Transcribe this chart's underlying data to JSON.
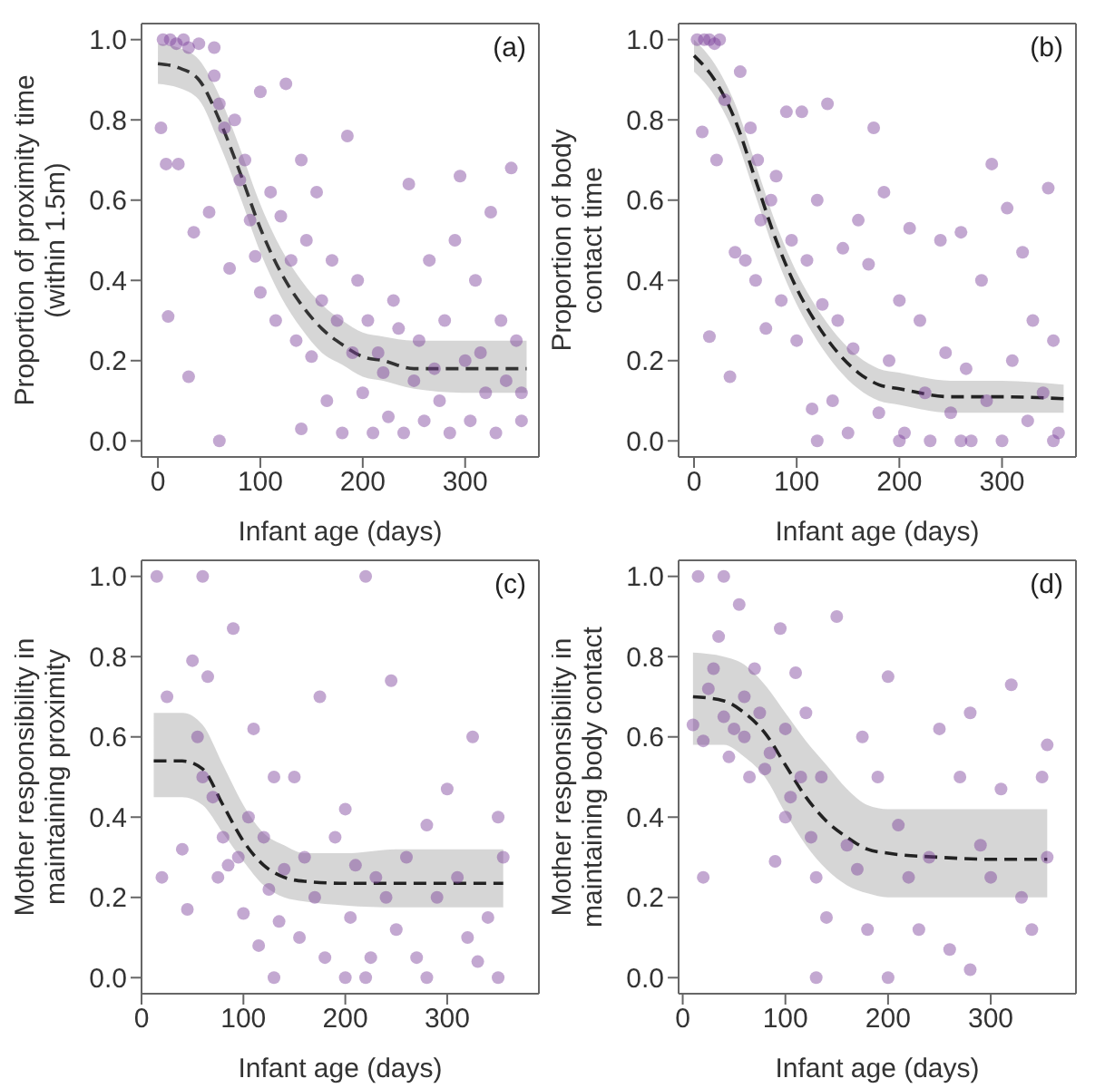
{
  "chart_data": [
    {
      "type": "scatter",
      "xlabel": "Infant age (days)",
      "ylabel": "Proportion of proximity time\n(within 1.5m)",
      "annotations": [
        "(a)"
      ],
      "xlim": [
        -16,
        372
      ],
      "ylim": [
        -0.04,
        1.04
      ],
      "xticks": [
        0,
        100,
        200,
        300
      ],
      "yticks": [
        {
          "value": 0,
          "label": "0.0"
        },
        {
          "value": 0.2,
          "label": "0.2"
        },
        {
          "value": 0.4,
          "label": "0.4"
        },
        {
          "value": 0.6,
          "label": "0.6"
        },
        {
          "value": 0.8,
          "label": "0.8"
        },
        {
          "value": 1,
          "label": "1.0"
        }
      ],
      "series": [
        {
          "marker": "circle",
          "color": "#7b3f98",
          "x": [
            5,
            12,
            18,
            25,
            30,
            40,
            55,
            3,
            8,
            10,
            20,
            35,
            50,
            55,
            60,
            65,
            70,
            75,
            80,
            85,
            90,
            95,
            100,
            100,
            110,
            115,
            120,
            125,
            130,
            135,
            140,
            145,
            150,
            155,
            160,
            165,
            170,
            175,
            180,
            185,
            190,
            195,
            200,
            205,
            210,
            215,
            220,
            225,
            230,
            235,
            240,
            245,
            250,
            255,
            260,
            265,
            270,
            275,
            280,
            285,
            290,
            295,
            300,
            305,
            310,
            315,
            320,
            325,
            330,
            335,
            340,
            345,
            350,
            355,
            355,
            140,
            60,
            30
          ],
          "values": [
            1.0,
            1.0,
            0.99,
            1.0,
            0.98,
            0.99,
            0.98,
            0.78,
            0.69,
            0.31,
            0.69,
            0.52,
            0.57,
            0.91,
            0.84,
            0.78,
            0.43,
            0.8,
            0.65,
            0.7,
            0.55,
            0.46,
            0.37,
            0.87,
            0.62,
            0.3,
            0.56,
            0.89,
            0.45,
            0.25,
            0.7,
            0.5,
            0.21,
            0.62,
            0.35,
            0.1,
            0.45,
            0.3,
            0.02,
            0.76,
            0.22,
            0.4,
            0.12,
            0.3,
            0.02,
            0.22,
            0.17,
            0.06,
            0.35,
            0.28,
            0.02,
            0.64,
            0.15,
            0.25,
            0.05,
            0.45,
            0.18,
            0.1,
            0.3,
            0.02,
            0.5,
            0.66,
            0.2,
            0.05,
            0.4,
            0.22,
            0.12,
            0.57,
            0.02,
            0.3,
            0.15,
            0.68,
            0.25,
            0.05,
            0.12,
            0.03,
            0.0,
            0.16
          ]
        },
        {
          "type": "line",
          "marker": "none",
          "line_style": "dashed",
          "color": "#333333",
          "x": [
            0,
            20,
            40,
            60,
            80,
            100,
            120,
            140,
            160,
            180,
            200,
            220,
            250,
            300,
            360
          ],
          "values": [
            0.94,
            0.93,
            0.9,
            0.8,
            0.67,
            0.53,
            0.42,
            0.34,
            0.28,
            0.24,
            0.21,
            0.2,
            0.18,
            0.18,
            0.18
          ],
          "lower": [
            0.89,
            0.88,
            0.85,
            0.74,
            0.61,
            0.47,
            0.36,
            0.28,
            0.22,
            0.19,
            0.16,
            0.15,
            0.13,
            0.12,
            0.12
          ],
          "upper": [
            0.99,
            0.98,
            0.95,
            0.86,
            0.73,
            0.59,
            0.48,
            0.4,
            0.34,
            0.3,
            0.27,
            0.26,
            0.25,
            0.25,
            0.25
          ]
        }
      ]
    },
    {
      "type": "scatter",
      "xlabel": "Infant age (days)",
      "ylabel": "Proportion of body\ncontact time",
      "annotations": [
        "(b)"
      ],
      "xlim": [
        -15,
        372
      ],
      "ylim": [
        -0.04,
        1.04
      ],
      "xticks": [
        0,
        100,
        200,
        300
      ],
      "yticks": [
        {
          "value": 0,
          "label": "0.0"
        },
        {
          "value": 0.2,
          "label": "0.2"
        },
        {
          "value": 0.4,
          "label": "0.4"
        },
        {
          "value": 0.6,
          "label": "0.6"
        },
        {
          "value": 0.8,
          "label": "0.8"
        },
        {
          "value": 1,
          "label": "1.0"
        }
      ],
      "series": [
        {
          "marker": "circle",
          "color": "#7b3f98",
          "x": [
            3,
            10,
            15,
            20,
            25,
            8,
            15,
            22,
            30,
            35,
            40,
            45,
            50,
            55,
            60,
            62,
            65,
            70,
            75,
            80,
            85,
            90,
            95,
            100,
            105,
            110,
            115,
            120,
            125,
            130,
            135,
            140,
            145,
            150,
            155,
            160,
            170,
            175,
            180,
            185,
            190,
            200,
            205,
            210,
            220,
            225,
            230,
            240,
            245,
            250,
            260,
            265,
            270,
            280,
            285,
            290,
            300,
            305,
            310,
            320,
            325,
            330,
            340,
            345,
            350,
            355,
            120,
            200,
            260,
            350
          ],
          "values": [
            1.0,
            1.0,
            1.0,
            0.99,
            1.0,
            0.77,
            0.26,
            0.7,
            0.85,
            0.16,
            0.47,
            0.92,
            0.45,
            0.78,
            0.4,
            0.7,
            0.55,
            0.28,
            0.6,
            0.66,
            0.35,
            0.82,
            0.5,
            0.25,
            0.82,
            0.45,
            0.08,
            0.6,
            0.34,
            0.84,
            0.1,
            0.3,
            0.48,
            0.02,
            0.23,
            0.55,
            0.44,
            0.78,
            0.07,
            0.62,
            0.2,
            0.35,
            0.02,
            0.53,
            0.3,
            0.12,
            0.0,
            0.5,
            0.22,
            0.07,
            0.52,
            0.18,
            0.0,
            0.4,
            0.1,
            0.69,
            0.0,
            0.58,
            0.2,
            0.47,
            0.05,
            0.3,
            0.12,
            0.63,
            0.25,
            0.02,
            0.0,
            0.0,
            0.0,
            0.0
          ]
        },
        {
          "type": "line",
          "marker": "none",
          "line_style": "dashed",
          "color": "#222222",
          "x": [
            0,
            20,
            40,
            60,
            80,
            100,
            120,
            140,
            160,
            180,
            200,
            250,
            300,
            360
          ],
          "values": [
            0.96,
            0.9,
            0.8,
            0.65,
            0.5,
            0.38,
            0.29,
            0.22,
            0.17,
            0.14,
            0.13,
            0.11,
            0.11,
            0.105
          ],
          "lower": [
            0.92,
            0.86,
            0.76,
            0.61,
            0.46,
            0.34,
            0.25,
            0.18,
            0.13,
            0.1,
            0.09,
            0.07,
            0.07,
            0.07
          ],
          "upper": [
            1.0,
            0.94,
            0.84,
            0.69,
            0.54,
            0.42,
            0.33,
            0.26,
            0.21,
            0.18,
            0.17,
            0.15,
            0.15,
            0.14
          ]
        }
      ]
    },
    {
      "type": "scatter",
      "xlabel": "Infant age (days)",
      "ylabel": "Mother responsibility in\nmaintaining proximity",
      "annotations": [
        "(c)"
      ],
      "xlim": [
        0,
        390
      ],
      "ylim": [
        -0.04,
        1.04
      ],
      "xticks": [
        0,
        100,
        200,
        300
      ],
      "yticks": [
        {
          "value": 0,
          "label": "0.0"
        },
        {
          "value": 0.2,
          "label": "0.2"
        },
        {
          "value": 0.4,
          "label": "0.4"
        },
        {
          "value": 0.6,
          "label": "0.6"
        },
        {
          "value": 0.8,
          "label": "0.8"
        },
        {
          "value": 1,
          "label": "1.0"
        }
      ],
      "series": [
        {
          "marker": "circle",
          "color": "#7b3f98",
          "x": [
            15,
            20,
            25,
            40,
            45,
            50,
            55,
            60,
            65,
            70,
            75,
            80,
            85,
            90,
            95,
            100,
            105,
            110,
            115,
            120,
            125,
            130,
            135,
            140,
            150,
            155,
            160,
            170,
            175,
            180,
            190,
            200,
            205,
            210,
            220,
            225,
            230,
            240,
            245,
            250,
            260,
            270,
            280,
            290,
            300,
            310,
            320,
            325,
            330,
            340,
            350,
            355,
            60,
            130,
            200,
            220,
            280,
            350
          ],
          "values": [
            1.0,
            0.25,
            0.7,
            0.32,
            0.17,
            0.79,
            0.6,
            0.5,
            0.75,
            0.45,
            0.25,
            0.35,
            0.28,
            0.87,
            0.3,
            0.16,
            0.4,
            0.62,
            0.08,
            0.35,
            0.22,
            0.5,
            0.14,
            0.27,
            0.5,
            0.1,
            0.3,
            0.2,
            0.7,
            0.05,
            0.35,
            0.0,
            0.15,
            0.28,
            1.0,
            0.05,
            0.25,
            0.2,
            0.74,
            0.12,
            0.3,
            0.05,
            0.0,
            0.2,
            0.47,
            0.25,
            0.1,
            0.6,
            0.04,
            0.15,
            0.4,
            0.3,
            1.0,
            0.0,
            0.42,
            0.0,
            0.38,
            0.0
          ]
        },
        {
          "type": "line",
          "marker": "none",
          "line_style": "dashed",
          "color": "#222222",
          "x": [
            12,
            40,
            60,
            80,
            100,
            120,
            140,
            160,
            200,
            250,
            300,
            355
          ],
          "values": [
            0.54,
            0.54,
            0.52,
            0.43,
            0.34,
            0.28,
            0.25,
            0.24,
            0.235,
            0.235,
            0.235,
            0.235
          ],
          "lower": [
            0.45,
            0.45,
            0.43,
            0.36,
            0.29,
            0.23,
            0.2,
            0.19,
            0.18,
            0.175,
            0.175,
            0.175
          ],
          "upper": [
            0.66,
            0.66,
            0.63,
            0.53,
            0.43,
            0.36,
            0.33,
            0.31,
            0.31,
            0.32,
            0.32,
            0.32
          ]
        }
      ]
    },
    {
      "type": "scatter",
      "xlabel": "Infant age (days)",
      "ylabel": "Mother responsibility in\nmaintaining body contact",
      "annotations": [
        "(d)"
      ],
      "xlim": [
        -4,
        383
      ],
      "ylim": [
        -0.04,
        1.04
      ],
      "xticks": [
        0,
        100,
        200,
        300
      ],
      "yticks": [
        {
          "value": 0,
          "label": "0.0"
        },
        {
          "value": 0.2,
          "label": "0.2"
        },
        {
          "value": 0.4,
          "label": "0.4"
        },
        {
          "value": 0.6,
          "label": "0.6"
        },
        {
          "value": 0.8,
          "label": "0.8"
        },
        {
          "value": 1,
          "label": "1.0"
        }
      ],
      "series": [
        {
          "marker": "circle",
          "color": "#7b3f98",
          "x": [
            10,
            15,
            20,
            25,
            30,
            35,
            40,
            45,
            50,
            55,
            60,
            65,
            70,
            75,
            80,
            85,
            90,
            95,
            100,
            105,
            110,
            115,
            120,
            125,
            130,
            135,
            140,
            150,
            160,
            170,
            175,
            180,
            190,
            200,
            210,
            220,
            230,
            240,
            250,
            260,
            270,
            280,
            290,
            300,
            310,
            320,
            330,
            340,
            350,
            355,
            20,
            40,
            60,
            100,
            130,
            200,
            280,
            355
          ],
          "values": [
            0.63,
            1.0,
            0.59,
            0.72,
            0.77,
            0.85,
            0.65,
            0.55,
            0.62,
            0.93,
            0.6,
            0.5,
            0.77,
            0.66,
            0.52,
            0.56,
            0.29,
            0.87,
            0.62,
            0.45,
            0.76,
            0.5,
            0.66,
            0.35,
            0.25,
            0.5,
            0.15,
            0.9,
            0.33,
            0.27,
            0.6,
            0.12,
            0.5,
            0.0,
            0.38,
            0.25,
            0.12,
            0.3,
            0.62,
            0.07,
            0.5,
            0.02,
            0.33,
            0.25,
            0.47,
            0.73,
            0.2,
            0.12,
            0.5,
            0.3,
            0.25,
            1.0,
            0.7,
            0.4,
            0.0,
            0.75,
            0.66,
            0.58
          ]
        },
        {
          "type": "line",
          "marker": "none",
          "line_style": "dashed",
          "color": "#222222",
          "x": [
            10,
            40,
            60,
            80,
            100,
            120,
            140,
            160,
            180,
            200,
            250,
            300,
            355
          ],
          "values": [
            0.7,
            0.69,
            0.66,
            0.61,
            0.53,
            0.45,
            0.39,
            0.35,
            0.32,
            0.31,
            0.3,
            0.295,
            0.295
          ],
          "lower": [
            0.58,
            0.58,
            0.55,
            0.5,
            0.41,
            0.33,
            0.27,
            0.23,
            0.21,
            0.2,
            0.2,
            0.2,
            0.2
          ],
          "upper": [
            0.81,
            0.8,
            0.78,
            0.73,
            0.66,
            0.59,
            0.53,
            0.47,
            0.43,
            0.42,
            0.42,
            0.42,
            0.42
          ]
        }
      ]
    }
  ]
}
